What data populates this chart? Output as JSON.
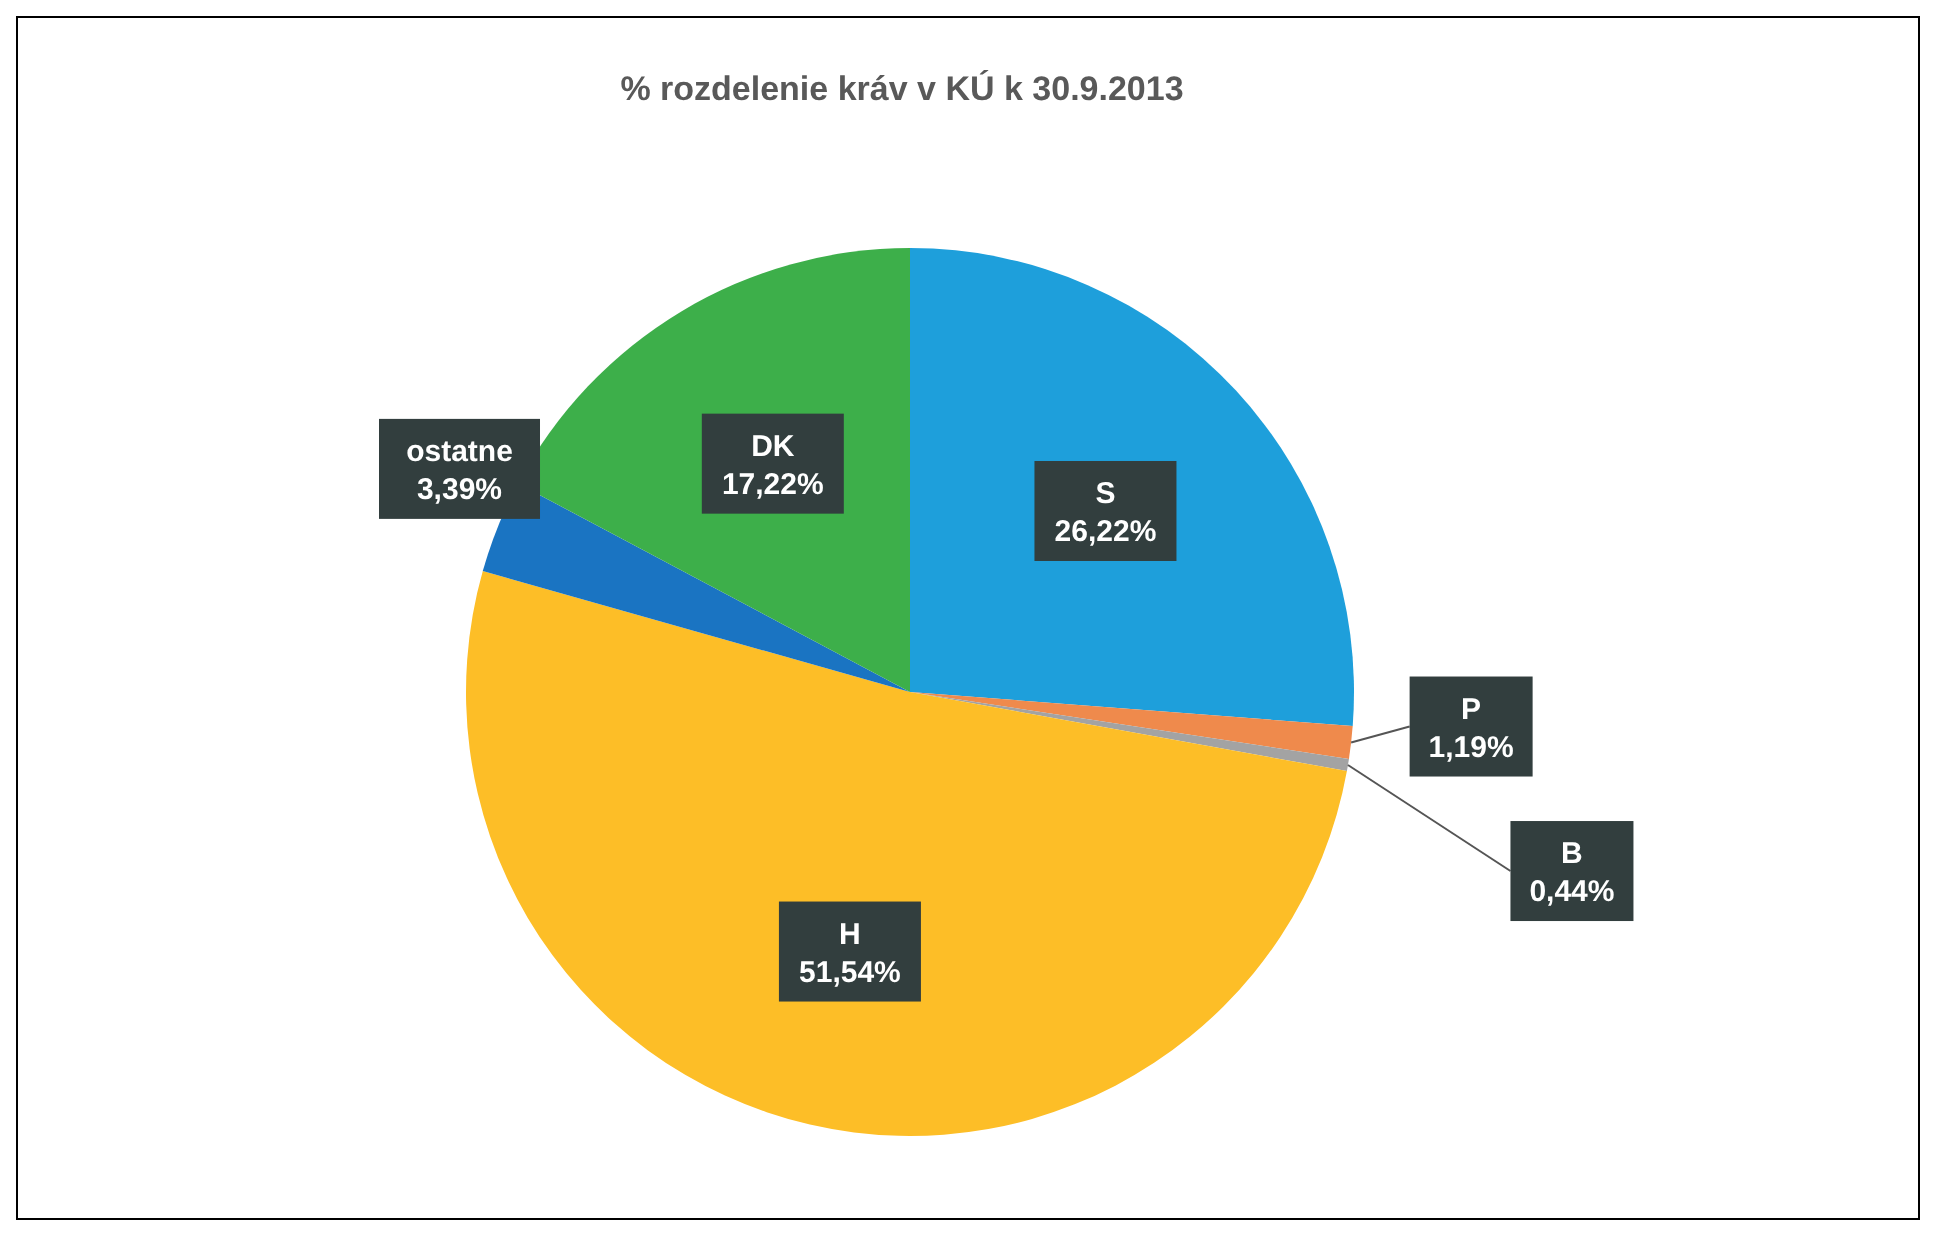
{
  "chart_data": {
    "type": "pie",
    "title": "%  rozdelenie kráv v KÚ k 30.9.2013",
    "categories": [
      "S",
      "P",
      "B",
      "H",
      "ostatne",
      "DK"
    ],
    "values": [
      26.22,
      1.19,
      0.44,
      51.54,
      3.39,
      17.22
    ],
    "colors": [
      "#1e9fdb",
      "#ef8a4c",
      "#a3a3a3",
      "#fdbe27",
      "#1a74c2",
      "#3daf4a"
    ],
    "value_labels": [
      "26,22%",
      "1,19%",
      "0,44%",
      "51,54%",
      "3,39%",
      "17,22%"
    ],
    "legend": false
  }
}
